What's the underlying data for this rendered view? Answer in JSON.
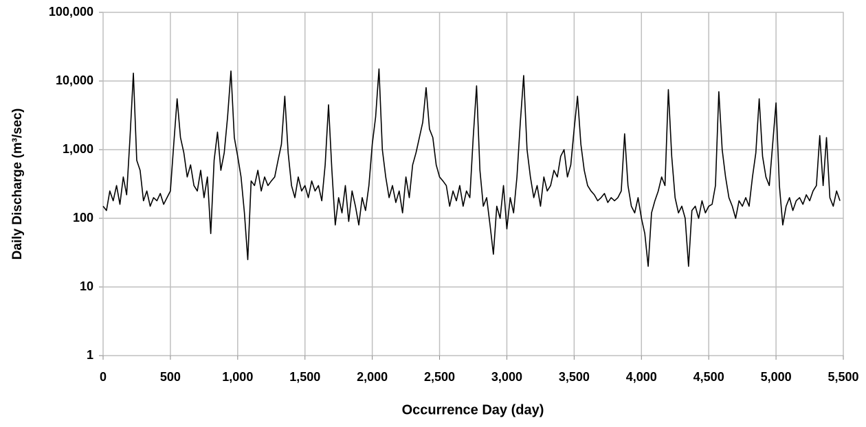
{
  "chart_data": {
    "type": "line",
    "x_label": "Occurrence Day (day)",
    "y_label": "Daily Discharge (m³/sec)",
    "yscale": "log",
    "grid": true,
    "xlim": [
      0,
      5500
    ],
    "ylim": [
      1,
      100000
    ],
    "xticks": [
      0,
      500,
      {
        "value": 1000,
        "label": "1,000"
      },
      {
        "value": 1500,
        "label": "1,500"
      },
      {
        "value": 2000,
        "label": "2,000"
      },
      {
        "value": 2500,
        "label": "2,500"
      },
      {
        "value": 3000,
        "label": "3,000"
      },
      {
        "value": 3500,
        "label": "3,500"
      },
      {
        "value": 4000,
        "label": "4,000"
      },
      {
        "value": 4500,
        "label": "4,500"
      },
      {
        "value": 5000,
        "label": "5,000"
      },
      {
        "value": 5500,
        "label": "5,500"
      }
    ],
    "yticks": [
      1,
      10,
      100,
      {
        "value": 1000,
        "label": "1,000"
      },
      {
        "value": 10000,
        "label": "10,000"
      },
      {
        "value": 100000,
        "label": "100,000"
      }
    ],
    "x": [
      0,
      25,
      50,
      75,
      100,
      125,
      150,
      175,
      200,
      225,
      250,
      275,
      300,
      325,
      350,
      375,
      400,
      425,
      450,
      475,
      500,
      525,
      550,
      575,
      600,
      625,
      650,
      675,
      700,
      725,
      750,
      775,
      800,
      825,
      850,
      875,
      900,
      925,
      950,
      975,
      1000,
      1025,
      1050,
      1075,
      1100,
      1125,
      1150,
      1175,
      1200,
      1225,
      1250,
      1275,
      1300,
      1325,
      1350,
      1375,
      1400,
      1425,
      1450,
      1475,
      1500,
      1525,
      1550,
      1575,
      1600,
      1625,
      1650,
      1675,
      1700,
      1725,
      1750,
      1775,
      1800,
      1825,
      1850,
      1875,
      1900,
      1925,
      1950,
      1975,
      2000,
      2025,
      2050,
      2075,
      2100,
      2125,
      2150,
      2175,
      2200,
      2225,
      2250,
      2275,
      2300,
      2325,
      2350,
      2375,
      2400,
      2425,
      2450,
      2475,
      2500,
      2525,
      2550,
      2575,
      2600,
      2625,
      2650,
      2675,
      2700,
      2725,
      2750,
      2775,
      2800,
      2825,
      2850,
      2875,
      2900,
      2925,
      2950,
      2975,
      3000,
      3025,
      3050,
      3075,
      3100,
      3125,
      3150,
      3175,
      3200,
      3225,
      3250,
      3275,
      3300,
      3325,
      3350,
      3375,
      3400,
      3425,
      3450,
      3475,
      3500,
      3525,
      3550,
      3575,
      3600,
      3625,
      3650,
      3675,
      3700,
      3725,
      3750,
      3775,
      3800,
      3825,
      3850,
      3875,
      3900,
      3925,
      3950,
      3975,
      4000,
      4025,
      4050,
      4075,
      4100,
      4125,
      4150,
      4175,
      4200,
      4225,
      4250,
      4275,
      4300,
      4325,
      4350,
      4375,
      4400,
      4425,
      4450,
      4475,
      4500,
      4525,
      4550,
      4575,
      4600,
      4625,
      4650,
      4675,
      4700,
      4725,
      4750,
      4775,
      4800,
      4825,
      4850,
      4875,
      4900,
      4925,
      4950,
      4975,
      5000,
      5025,
      5050,
      5075,
      5100,
      5125,
      5150,
      5175,
      5200,
      5225,
      5250,
      5275,
      5300,
      5325,
      5350,
      5375,
      5400,
      5425,
      5450,
      5475
    ],
    "series": [
      {
        "color": "#000000",
        "values": [
          150,
          130,
          250,
          180,
          300,
          160,
          400,
          220,
          1500,
          13000,
          700,
          500,
          180,
          250,
          150,
          200,
          180,
          230,
          160,
          200,
          250,
          1200,
          5500,
          1500,
          900,
          400,
          600,
          300,
          250,
          500,
          200,
          400,
          60,
          700,
          1800,
          500,
          900,
          3000,
          14000,
          1500,
          800,
          400,
          120,
          25,
          350,
          300,
          500,
          250,
          400,
          300,
          350,
          400,
          700,
          1200,
          6000,
          900,
          300,
          200,
          400,
          250,
          300,
          200,
          350,
          250,
          300,
          180,
          600,
          4500,
          500,
          80,
          200,
          120,
          300,
          90,
          250,
          150,
          80,
          200,
          130,
          300,
          1200,
          3000,
          15000,
          1000,
          400,
          200,
          300,
          170,
          250,
          120,
          400,
          200,
          600,
          900,
          1500,
          2500,
          8000,
          2000,
          1500,
          600,
          400,
          350,
          300,
          150,
          250,
          180,
          300,
          150,
          250,
          200,
          1500,
          8500,
          500,
          150,
          200,
          80,
          30,
          150,
          100,
          300,
          70,
          200,
          120,
          400,
          2500,
          12000,
          1000,
          400,
          200,
          300,
          150,
          400,
          250,
          300,
          500,
          400,
          800,
          1000,
          400,
          600,
          2000,
          6000,
          1200,
          500,
          300,
          250,
          220,
          180,
          200,
          230,
          170,
          200,
          180,
          200,
          250,
          1700,
          300,
          150,
          120,
          200,
          100,
          60,
          20,
          120,
          180,
          250,
          400,
          300,
          7500,
          800,
          200,
          120,
          150,
          100,
          20,
          130,
          150,
          100,
          180,
          120,
          150,
          160,
          300,
          7000,
          1000,
          400,
          200,
          150,
          100,
          180,
          150,
          200,
          150,
          400,
          900,
          5500,
          800,
          400,
          300,
          1200,
          4800,
          300,
          80,
          150,
          200,
          130,
          180,
          200,
          160,
          220,
          180,
          250,
          300,
          1600,
          300,
          1500,
          200,
          150,
          250,
          180
        ]
      }
    ]
  }
}
